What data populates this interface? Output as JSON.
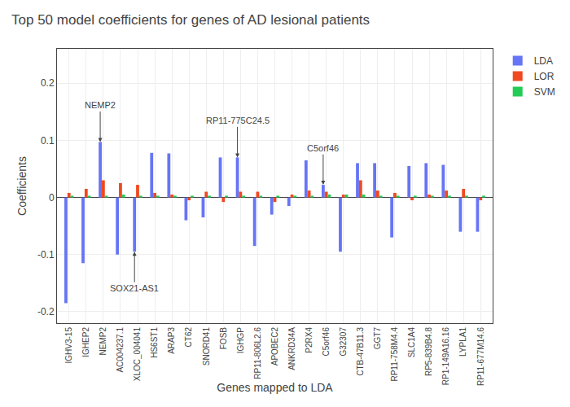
{
  "chart_data": {
    "type": "bar",
    "title": "Top 50 model coefficients for genes of AD lesional patients",
    "xlabel": "Genes mapped to LDA",
    "ylabel": "Coefficients",
    "categories": [
      "IGHV3-15",
      "IGHEP2",
      "NEMP2",
      "AC004237.1",
      "XLOC_004041",
      "HS6ST1",
      "ARAP3",
      "CT62",
      "SNORD41",
      "FOSB",
      "IGHGP",
      "RP11-806L2.6",
      "APOBEC2",
      "ANKRD34A",
      "P2RX4",
      "C5orf46",
      "G32307",
      "CTB-47B11.3",
      "GGT7",
      "RP11-758M4.4",
      "SLC1A4",
      "RP5-839B4.8",
      "RP1-149A16.16",
      "LYPLA1",
      "RP11-677M14.6"
    ],
    "series": [
      {
        "name": "LDA",
        "color": "#6675f5",
        "values": [
          -0.185,
          -0.115,
          0.097,
          -0.1,
          -0.095,
          0.078,
          0.077,
          -0.04,
          -0.035,
          0.07,
          0.07,
          -0.085,
          -0.03,
          -0.015,
          0.065,
          0.022,
          -0.095,
          0.06,
          0.06,
          -0.07,
          0.055,
          0.06,
          0.057,
          -0.06,
          -0.06
        ]
      },
      {
        "name": "LOR",
        "color": "#f04820",
        "values": [
          0.008,
          0.015,
          0.03,
          0.025,
          0.022,
          0.008,
          0.005,
          -0.005,
          0.01,
          -0.008,
          0.01,
          0.01,
          -0.008,
          0.005,
          0.012,
          0.01,
          0.005,
          0.03,
          0.012,
          0.008,
          -0.005,
          0.005,
          0.012,
          0.015,
          -0.005
        ]
      },
      {
        "name": "SVM",
        "color": "#22cc55",
        "values": [
          0.003,
          0.003,
          0.003,
          0.005,
          0.003,
          0.003,
          0.003,
          0.003,
          0.003,
          0.003,
          0.003,
          0.003,
          0.003,
          0.003,
          0.003,
          0.005,
          0.005,
          0.005,
          0.003,
          0.003,
          0.003,
          0.003,
          0.003,
          0.003,
          0.003
        ]
      }
    ],
    "ylim": [
      -0.22,
      0.26
    ],
    "yticks": [
      -0.2,
      -0.1,
      0,
      0.1,
      0.2
    ],
    "grid": true,
    "legend": "right",
    "annotations": [
      {
        "text": "NEMP2",
        "category": "NEMP2",
        "series": "LDA"
      },
      {
        "text": "SOX21-AS1",
        "category": "XLOC_004041",
        "series": "LDA"
      },
      {
        "text": "RP11-775C24.5",
        "category": "IGHGP",
        "series": "LDA"
      },
      {
        "text": "C5orf46",
        "category": "C5orf46",
        "series": "LDA"
      }
    ]
  }
}
